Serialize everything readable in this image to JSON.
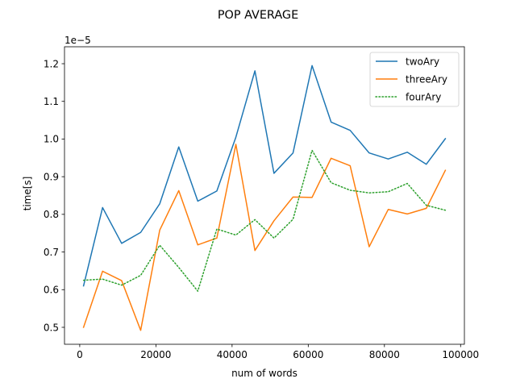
{
  "chart_data": {
    "type": "line",
    "title": "POP AVERAGE",
    "xlabel": "num of words",
    "ylabel": "time[s]",
    "y_offset_label": "1e−5",
    "y_scale_factor": 1e-05,
    "xlim": [
      -4000,
      101000
    ],
    "ylim": [
      0.455,
      1.245
    ],
    "xticks": [
      0,
      20000,
      40000,
      60000,
      80000,
      100000
    ],
    "xtick_labels": [
      "0",
      "20000",
      "40000",
      "60000",
      "80000",
      "100000"
    ],
    "yticks": [
      0.5,
      0.6,
      0.7,
      0.8,
      0.9,
      1.0,
      1.1,
      1.2
    ],
    "ytick_labels": [
      "0.5",
      "0.6",
      "0.7",
      "0.8",
      "0.9",
      "1.0",
      "1.1",
      "1.2"
    ],
    "grid": false,
    "legend_position": "top-right",
    "x": [
      1000,
      6000,
      11000,
      16000,
      21000,
      26000,
      31000,
      36000,
      41000,
      46000,
      51000,
      56000,
      61000,
      66000,
      71000,
      76000,
      81000,
      86000,
      91000,
      96000
    ],
    "series": [
      {
        "name": "twoAry",
        "color": "#1f77b4",
        "style": "solid",
        "values": [
          0.61,
          0.818,
          0.723,
          0.752,
          0.828,
          0.979,
          0.835,
          0.862,
          1.005,
          1.181,
          0.909,
          0.963,
          1.195,
          1.045,
          1.023,
          0.963,
          0.947,
          0.965,
          0.933,
          1.001
        ]
      },
      {
        "name": "threeAry",
        "color": "#ff7f0e",
        "style": "solid",
        "values": [
          0.5,
          0.649,
          0.624,
          0.492,
          0.758,
          0.863,
          0.719,
          0.737,
          0.986,
          0.704,
          0.783,
          0.846,
          0.845,
          0.949,
          0.929,
          0.714,
          0.813,
          0.801,
          0.816,
          0.917
        ]
      },
      {
        "name": "fourAry",
        "color": "#2ca02c",
        "style": "dotted",
        "values": [
          0.625,
          0.628,
          0.612,
          0.638,
          0.718,
          0.659,
          0.596,
          0.761,
          0.745,
          0.786,
          0.737,
          0.787,
          0.97,
          0.884,
          0.864,
          0.857,
          0.86,
          0.882,
          0.824,
          0.811
        ]
      }
    ]
  }
}
